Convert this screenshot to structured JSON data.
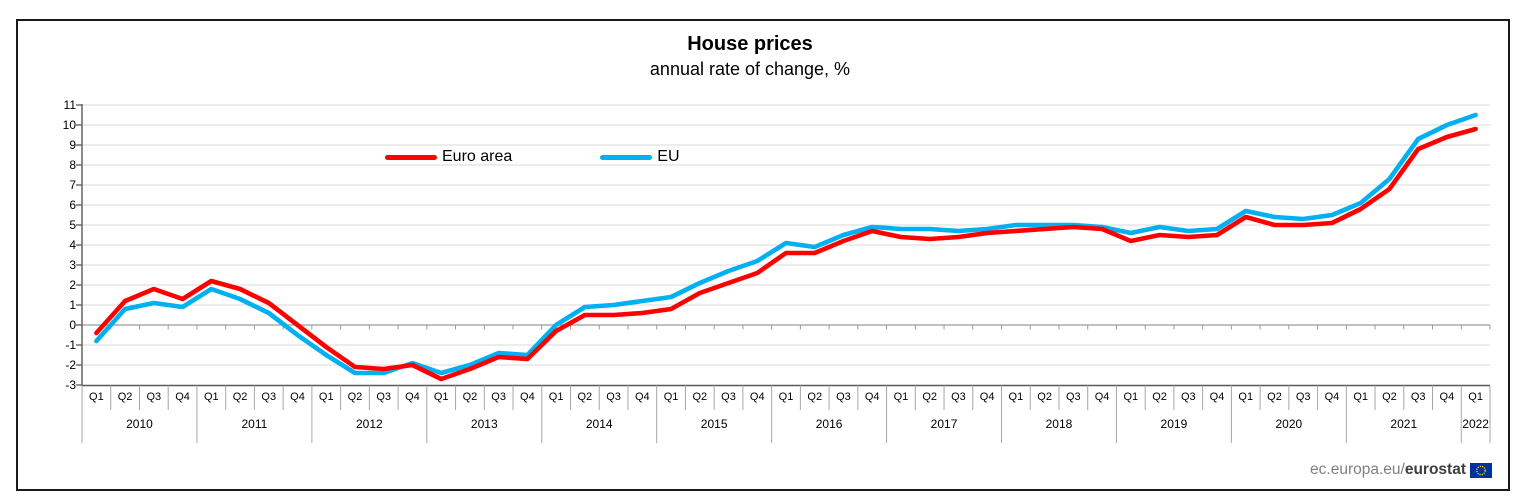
{
  "header": {
    "title": "House prices",
    "subtitle": "annual rate of change, %"
  },
  "footer": {
    "url_prefix": "ec.europa.eu/",
    "url_bold": "eurostat",
    "flag_icon": "eu-flag-icon",
    "flag_colors": {
      "bg": "#003399",
      "stars": "#FFCC00"
    }
  },
  "chart_data": {
    "type": "line",
    "title": "House prices",
    "subtitle": "annual rate of change, %",
    "grid": true,
    "legend_position": "inside-top-left",
    "ylim": [
      -3,
      11
    ],
    "y_ticks": [
      -3,
      -2,
      -1,
      0,
      1,
      2,
      3,
      4,
      5,
      6,
      7,
      8,
      9,
      10,
      11
    ],
    "x_labels": [
      "Q1",
      "Q2",
      "Q3",
      "Q4",
      "Q1",
      "Q2",
      "Q3",
      "Q4",
      "Q1",
      "Q2",
      "Q3",
      "Q4",
      "Q1",
      "Q2",
      "Q3",
      "Q4",
      "Q1",
      "Q2",
      "Q3",
      "Q4",
      "Q1",
      "Q2",
      "Q3",
      "Q4",
      "Q1",
      "Q2",
      "Q3",
      "Q4",
      "Q1",
      "Q2",
      "Q3",
      "Q4",
      "Q1",
      "Q2",
      "Q3",
      "Q4",
      "Q1",
      "Q2",
      "Q3",
      "Q4",
      "Q1",
      "Q2",
      "Q3",
      "Q4",
      "Q1",
      "Q2",
      "Q3",
      "Q4",
      "Q1"
    ],
    "years": [
      {
        "label": "2010",
        "quarters": 4
      },
      {
        "label": "2011",
        "quarters": 4
      },
      {
        "label": "2012",
        "quarters": 4
      },
      {
        "label": "2013",
        "quarters": 4
      },
      {
        "label": "2014",
        "quarters": 4
      },
      {
        "label": "2015",
        "quarters": 4
      },
      {
        "label": "2016",
        "quarters": 4
      },
      {
        "label": "2017",
        "quarters": 4
      },
      {
        "label": "2018",
        "quarters": 4
      },
      {
        "label": "2019",
        "quarters": 4
      },
      {
        "label": "2020",
        "quarters": 4
      },
      {
        "label": "2021",
        "quarters": 4
      },
      {
        "label": "2022",
        "quarters": 1
      }
    ],
    "series": [
      {
        "name": "Euro area",
        "color": "#FF0000",
        "values": [
          -0.4,
          1.2,
          1.8,
          1.3,
          2.2,
          1.8,
          1.1,
          0.0,
          -1.1,
          -2.1,
          -2.2,
          -2.0,
          -2.7,
          -2.2,
          -1.6,
          -1.7,
          -0.3,
          0.5,
          0.5,
          0.6,
          0.8,
          1.6,
          2.1,
          2.6,
          3.6,
          3.6,
          4.2,
          4.7,
          4.4,
          4.3,
          4.4,
          4.6,
          4.7,
          4.8,
          4.9,
          4.8,
          4.2,
          4.5,
          4.4,
          4.5,
          5.4,
          5.0,
          5.0,
          5.1,
          5.8,
          6.8,
          8.8,
          9.4,
          9.8
        ]
      },
      {
        "name": "EU",
        "color": "#00B0F0",
        "values": [
          -0.8,
          0.8,
          1.1,
          0.9,
          1.8,
          1.3,
          0.6,
          -0.5,
          -1.5,
          -2.4,
          -2.4,
          -1.9,
          -2.4,
          -2.0,
          -1.4,
          -1.5,
          0.0,
          0.9,
          1.0,
          1.2,
          1.4,
          2.1,
          2.7,
          3.2,
          4.1,
          3.9,
          4.5,
          4.9,
          4.8,
          4.8,
          4.7,
          4.8,
          5.0,
          5.0,
          5.0,
          4.9,
          4.6,
          4.9,
          4.7,
          4.8,
          5.7,
          5.4,
          5.3,
          5.5,
          6.1,
          7.3,
          9.3,
          10.0,
          10.5
        ]
      }
    ]
  }
}
